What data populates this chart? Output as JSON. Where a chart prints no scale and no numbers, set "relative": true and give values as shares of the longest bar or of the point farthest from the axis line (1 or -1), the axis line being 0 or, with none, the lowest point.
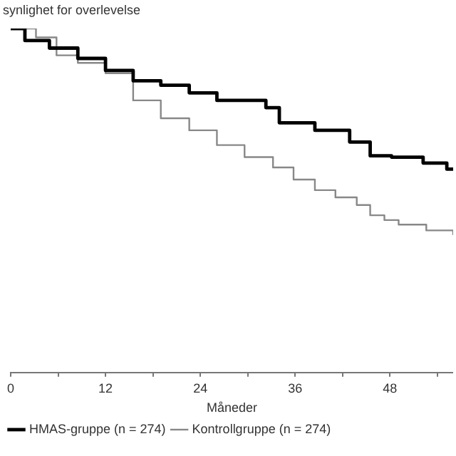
{
  "chart_data": {
    "type": "step",
    "ylabel": "synlighet for overlevelse",
    "xlabel": "Måneder",
    "relative": true,
    "xlim": [
      0,
      56
    ],
    "xticks": [
      0,
      {
        "value": 6,
        "label": null
      },
      12,
      {
        "value": 18,
        "label": null
      },
      24,
      {
        "value": 30,
        "label": null
      },
      36,
      {
        "value": 42,
        "label": null
      },
      48,
      {
        "value": 54,
        "label": null
      }
    ],
    "legend": "bottom left",
    "grid": false,
    "marker": "none",
    "series": [
      {
        "name": "HMAS-gruppe (n = 274)",
        "color": "#000000",
        "x": [
          0,
          1.8,
          4.9,
          8.5,
          12,
          15.5,
          19,
          22.6,
          26.1,
          32.3,
          34,
          38.5,
          42.9,
          45.5,
          48.2,
          52.2,
          55.2,
          56
        ],
        "values": [
          1,
          0.965,
          0.943,
          0.913,
          0.878,
          0.848,
          0.835,
          0.813,
          0.791,
          0.77,
          0.726,
          0.704,
          0.67,
          0.63,
          0.626,
          0.609,
          0.591,
          0.591
        ]
      },
      {
        "name": "Kontrollgruppe (n = 274)",
        "color": "#888888",
        "x": [
          0,
          3.2,
          5.8,
          8.5,
          12,
          15.5,
          19,
          22.6,
          26.1,
          29.6,
          33.2,
          35.8,
          38.5,
          41.1,
          43.8,
          45.5,
          47.3,
          49.1,
          52.6,
          56
        ],
        "values": [
          1,
          0.974,
          0.922,
          0.9,
          0.87,
          0.791,
          0.739,
          0.704,
          0.661,
          0.626,
          0.596,
          0.561,
          0.53,
          0.509,
          0.487,
          0.457,
          0.443,
          0.43,
          0.413,
          0.4
        ]
      }
    ]
  }
}
